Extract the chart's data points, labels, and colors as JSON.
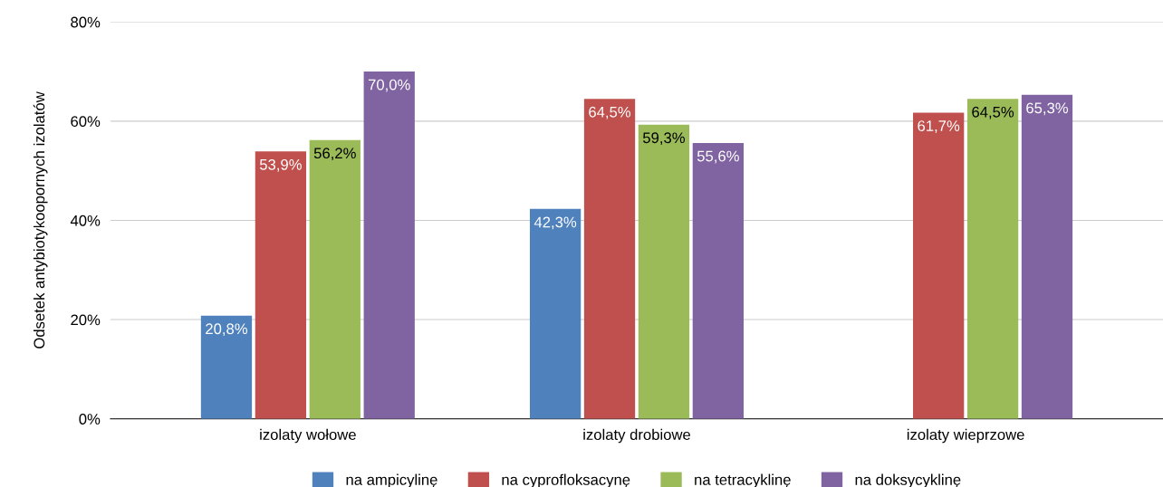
{
  "chart_data": {
    "type": "bar",
    "ylabel": "Odsetek antybiotykoopornych izolatów",
    "categories": [
      "izolaty wołowe",
      "izolaty drobiowe",
      "izolaty wieprzowe"
    ],
    "series": [
      {
        "name": "na ampicylinę",
        "color": "#4f81bd",
        "values": [
          20.8,
          42.3,
          null
        ],
        "value_labels": [
          "20,8%",
          "42,3%",
          null
        ]
      },
      {
        "name": "na cyprofloksacynę",
        "color": "#c0504d",
        "values": [
          53.9,
          64.5,
          61.7
        ],
        "value_labels": [
          "53,9%",
          "64,5%",
          "61,7%"
        ]
      },
      {
        "name": "na tetracyklinę",
        "color": "#9bbb59",
        "values": [
          56.2,
          59.3,
          64.5
        ],
        "value_labels": [
          "56,2%",
          "59,3%",
          "64,5%"
        ]
      },
      {
        "name": "na doksycyklinę",
        "color": "#8064a2",
        "values": [
          70.0,
          55.6,
          65.3
        ],
        "value_labels": [
          "70,0%",
          "55,6%",
          "65,3%"
        ]
      }
    ],
    "ylim": [
      0,
      80
    ],
    "yticks": [
      {
        "value": 0,
        "label": "0%"
      },
      {
        "value": 20,
        "label": "20%"
      },
      {
        "value": 40,
        "label": "40%"
      },
      {
        "value": 60,
        "label": "60%"
      },
      {
        "value": 80,
        "label": "80%"
      }
    ],
    "grid": "y",
    "legend": "bottom"
  }
}
